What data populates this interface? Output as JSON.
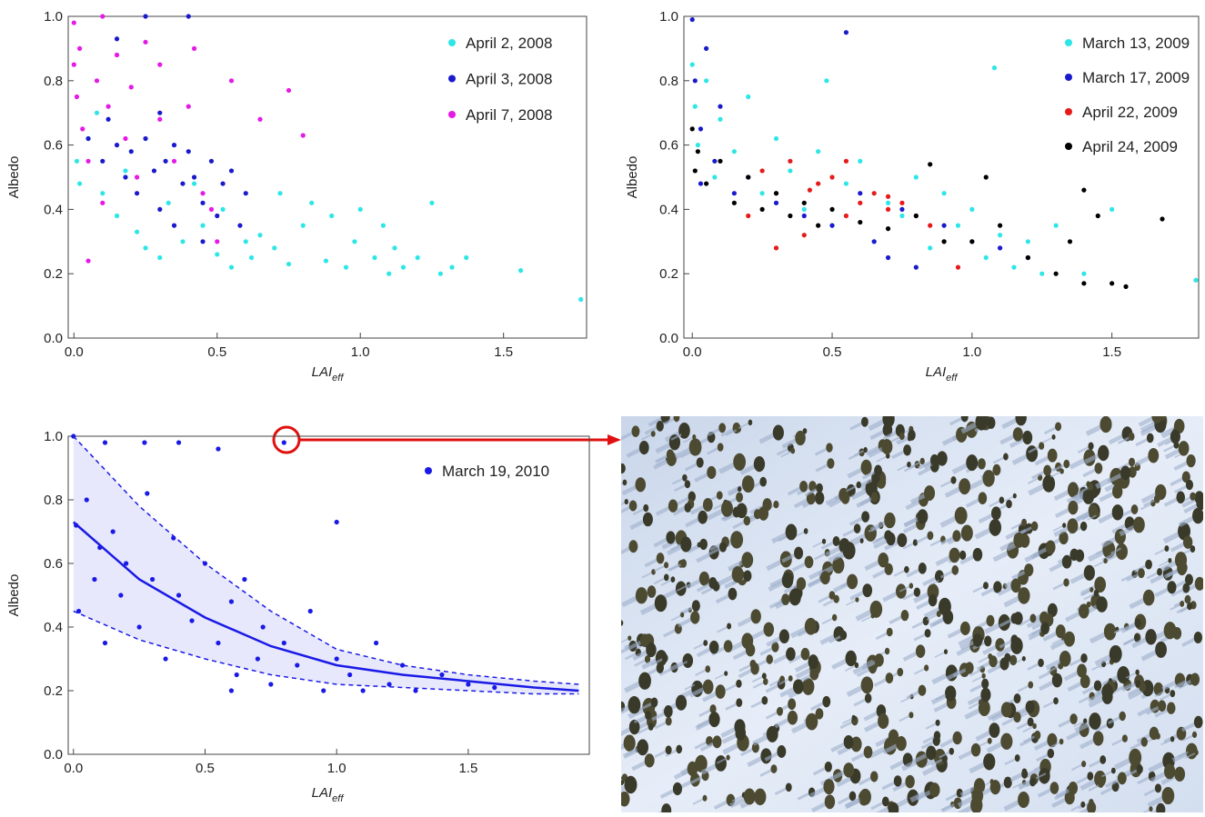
{
  "chart_data": [
    {
      "type": "scatter",
      "y_label": "Albedo",
      "x_label_main": "LAI",
      "x_label_sub": "eff",
      "xlim": [
        -0.02,
        1.79
      ],
      "ylim": [
        0,
        1
      ],
      "xticks": [
        {
          "value": 0,
          "label": "0.0"
        },
        0.5,
        {
          "value": 1,
          "label": "1.0"
        },
        1.5
      ],
      "yticks": [
        {
          "value": 0,
          "label": "0.0"
        },
        0.2,
        0.4,
        0.6,
        0.8,
        {
          "value": 1,
          "label": "1.0"
        }
      ],
      "series": [
        {
          "name": "April 2, 2008",
          "color": "#2ee6e6",
          "x": [
            0.01,
            0.02,
            0.05,
            0.08,
            0.1,
            0.15,
            0.18,
            0.22,
            0.25,
            0.3,
            0.33,
            0.38,
            0.42,
            0.45,
            0.5,
            0.52,
            0.55,
            0.6,
            0.62,
            0.65,
            0.7,
            0.72,
            0.75,
            0.8,
            0.83,
            0.88,
            0.9,
            0.95,
            0.98,
            1.0,
            1.05,
            1.08,
            1.1,
            1.12,
            1.15,
            1.2,
            1.25,
            1.28,
            1.32,
            1.37,
            1.56,
            1.77
          ],
          "y": [
            0.55,
            0.48,
            0.62,
            0.7,
            0.45,
            0.38,
            0.52,
            0.33,
            0.28,
            0.25,
            0.42,
            0.3,
            0.48,
            0.35,
            0.26,
            0.4,
            0.22,
            0.3,
            0.25,
            0.32,
            0.28,
            0.45,
            0.23,
            0.35,
            0.42,
            0.24,
            0.38,
            0.22,
            0.3,
            0.4,
            0.25,
            0.35,
            0.2,
            0.28,
            0.22,
            0.25,
            0.42,
            0.2,
            0.22,
            0.25,
            0.21,
            0.12
          ]
        },
        {
          "name": "April 3, 2008",
          "color": "#1a1acc",
          "x": [
            0.05,
            0.1,
            0.12,
            0.15,
            0.18,
            0.2,
            0.22,
            0.25,
            0.28,
            0.3,
            0.32,
            0.35,
            0.38,
            0.4,
            0.42,
            0.45,
            0.48,
            0.5,
            0.52,
            0.55,
            0.58,
            0.6,
            0.25,
            0.35,
            0.4,
            0.15,
            0.3,
            0.45
          ],
          "y": [
            0.62,
            0.55,
            0.68,
            0.6,
            0.5,
            0.58,
            0.45,
            0.62,
            0.52,
            0.4,
            0.55,
            0.6,
            0.48,
            0.58,
            0.5,
            0.42,
            0.55,
            0.38,
            0.48,
            0.52,
            0.35,
            0.45,
            1.0,
            0.35,
            1.0,
            0.93,
            0.7,
            0.3
          ]
        },
        {
          "name": "April 7, 2008",
          "color": "#e619e6",
          "x": [
            0.0,
            0.0,
            0.01,
            0.02,
            0.03,
            0.05,
            0.08,
            0.1,
            0.12,
            0.15,
            0.18,
            0.2,
            0.22,
            0.25,
            0.3,
            0.35,
            0.4,
            0.42,
            0.45,
            0.5,
            0.55,
            0.65,
            0.75,
            0.8,
            0.05,
            0.1,
            0.3,
            0.48
          ],
          "y": [
            0.98,
            0.85,
            0.75,
            0.9,
            0.65,
            0.24,
            0.8,
            1.0,
            0.72,
            0.88,
            0.62,
            0.78,
            0.5,
            0.92,
            0.68,
            0.55,
            0.72,
            0.9,
            0.45,
            0.3,
            0.8,
            0.68,
            0.77,
            0.63,
            0.55,
            0.42,
            0.85,
            0.4
          ]
        }
      ]
    },
    {
      "type": "scatter",
      "y_label": "Albedo",
      "x_label_main": "LAI",
      "x_label_sub": "eff",
      "xlim": [
        -0.03,
        1.81
      ],
      "ylim": [
        0,
        1
      ],
      "xticks": [
        {
          "value": 0,
          "label": "0.0"
        },
        0.5,
        {
          "value": 1,
          "label": "1.0"
        },
        1.5
      ],
      "yticks": [
        {
          "value": 0,
          "label": "0.0"
        },
        0.2,
        0.4,
        0.6,
        0.8,
        {
          "value": 1,
          "label": "1.0"
        }
      ],
      "series": [
        {
          "name": "March 13, 2009",
          "color": "#2ee6e6",
          "x": [
            0.0,
            0.01,
            0.02,
            0.05,
            0.08,
            0.1,
            0.15,
            0.2,
            0.25,
            0.3,
            0.35,
            0.4,
            0.45,
            0.5,
            0.55,
            0.6,
            0.65,
            0.7,
            0.75,
            0.8,
            0.85,
            0.9,
            0.95,
            1.0,
            1.05,
            1.1,
            1.15,
            1.2,
            1.25,
            1.3,
            1.4,
            1.5,
            1.8,
            1.08,
            0.48
          ],
          "y": [
            0.85,
            0.72,
            0.6,
            0.8,
            0.5,
            0.68,
            0.58,
            0.75,
            0.45,
            0.62,
            0.52,
            0.4,
            0.58,
            0.35,
            0.48,
            0.55,
            0.3,
            0.42,
            0.38,
            0.5,
            0.28,
            0.45,
            0.35,
            0.4,
            0.25,
            0.32,
            0.22,
            0.3,
            0.2,
            0.35,
            0.2,
            0.4,
            0.18,
            0.84,
            0.8
          ]
        },
        {
          "name": "March 17, 2009",
          "color": "#1a1acc",
          "x": [
            0.0,
            0.01,
            0.03,
            0.05,
            0.08,
            0.1,
            0.15,
            0.2,
            0.3,
            0.4,
            0.5,
            0.55,
            0.6,
            0.7,
            0.75,
            0.8,
            0.9,
            1.0,
            1.1,
            1.2,
            0.65,
            0.03
          ],
          "y": [
            0.99,
            0.8,
            0.65,
            0.9,
            0.55,
            0.72,
            0.45,
            0.5,
            0.42,
            0.38,
            0.35,
            0.95,
            0.45,
            0.25,
            0.4,
            0.22,
            0.35,
            0.3,
            0.28,
            0.25,
            0.3,
            0.48
          ]
        },
        {
          "name": "April 22, 2009",
          "color": "#e61a1a",
          "x": [
            0.2,
            0.25,
            0.3,
            0.35,
            0.4,
            0.45,
            0.5,
            0.55,
            0.6,
            0.65,
            0.7,
            0.75,
            0.8,
            0.85,
            0.9,
            0.95,
            0.3,
            0.55,
            0.7,
            0.42
          ],
          "y": [
            0.38,
            0.52,
            0.45,
            0.55,
            0.32,
            0.48,
            0.5,
            0.55,
            0.42,
            0.45,
            0.4,
            0.42,
            0.38,
            0.35,
            0.3,
            0.22,
            0.28,
            0.38,
            0.44,
            0.46
          ]
        },
        {
          "name": "April 24, 2009",
          "color": "#000000",
          "x": [
            0.0,
            0.01,
            0.02,
            0.05,
            0.1,
            0.15,
            0.2,
            0.25,
            0.3,
            0.35,
            0.4,
            0.5,
            0.6,
            0.7,
            0.8,
            0.9,
            1.0,
            1.1,
            1.2,
            1.3,
            1.35,
            1.4,
            1.45,
            1.5,
            1.55,
            1.68,
            1.4,
            1.05,
            0.85,
            0.45
          ],
          "y": [
            0.65,
            0.52,
            0.58,
            0.48,
            0.55,
            0.42,
            0.5,
            0.4,
            0.45,
            0.38,
            0.42,
            0.4,
            0.36,
            0.34,
            0.38,
            0.3,
            0.3,
            0.35,
            0.25,
            0.2,
            0.3,
            0.17,
            0.38,
            0.17,
            0.16,
            0.37,
            0.46,
            0.5,
            0.54,
            0.35
          ]
        }
      ]
    },
    {
      "type": "scatter",
      "y_label": "Albedo",
      "x_label_main": "LAI",
      "x_label_sub": "eff",
      "xlim": [
        -0.02,
        1.96
      ],
      "ylim": [
        0,
        1
      ],
      "xticks": [
        {
          "value": 0,
          "label": "0.0"
        },
        0.5,
        {
          "value": 1,
          "label": "1.0"
        },
        1.5
      ],
      "yticks": [
        {
          "value": 0,
          "label": "0.0"
        },
        0.2,
        0.4,
        0.6,
        0.8,
        {
          "value": 1,
          "label": "1.0"
        }
      ],
      "series": [
        {
          "name": "March 19, 2010",
          "color": "#1a1ae6",
          "x": [
            0.0,
            0.01,
            0.02,
            0.05,
            0.08,
            0.1,
            0.12,
            0.15,
            0.18,
            0.2,
            0.25,
            0.28,
            0.3,
            0.35,
            0.38,
            0.4,
            0.45,
            0.5,
            0.55,
            0.6,
            0.62,
            0.65,
            0.7,
            0.72,
            0.75,
            0.8,
            0.85,
            0.9,
            0.95,
            1.0,
            1.05,
            1.1,
            1.15,
            1.2,
            1.25,
            1.3,
            1.4,
            1.5,
            1.6,
            0.8,
            0.55,
            0.27,
            0.12,
            1.0,
            0.4,
            0.6
          ],
          "y": [
            1.0,
            0.72,
            0.45,
            0.8,
            0.55,
            0.65,
            0.35,
            0.7,
            0.5,
            0.6,
            0.4,
            0.82,
            0.55,
            0.3,
            0.68,
            0.5,
            0.42,
            0.6,
            0.35,
            0.48,
            0.25,
            0.55,
            0.3,
            0.4,
            0.22,
            0.35,
            0.28,
            0.45,
            0.2,
            0.3,
            0.25,
            0.2,
            0.35,
            0.22,
            0.28,
            0.2,
            0.25,
            0.22,
            0.21,
            0.98,
            0.96,
            0.98,
            0.98,
            0.73,
            0.98,
            0.2
          ]
        }
      ],
      "fit": {
        "color": "#1a1ae6",
        "x": [
          0,
          0.25,
          0.5,
          0.75,
          1.0,
          1.25,
          1.5,
          1.75,
          1.92
        ],
        "y": [
          0.73,
          0.55,
          0.43,
          0.34,
          0.28,
          0.25,
          0.23,
          0.21,
          0.2
        ],
        "upper": [
          1.0,
          0.78,
          0.6,
          0.45,
          0.33,
          0.28,
          0.25,
          0.23,
          0.22
        ],
        "lower": [
          0.45,
          0.36,
          0.3,
          0.25,
          0.22,
          0.21,
          0.2,
          0.19,
          0.19
        ]
      }
    }
  ]
}
